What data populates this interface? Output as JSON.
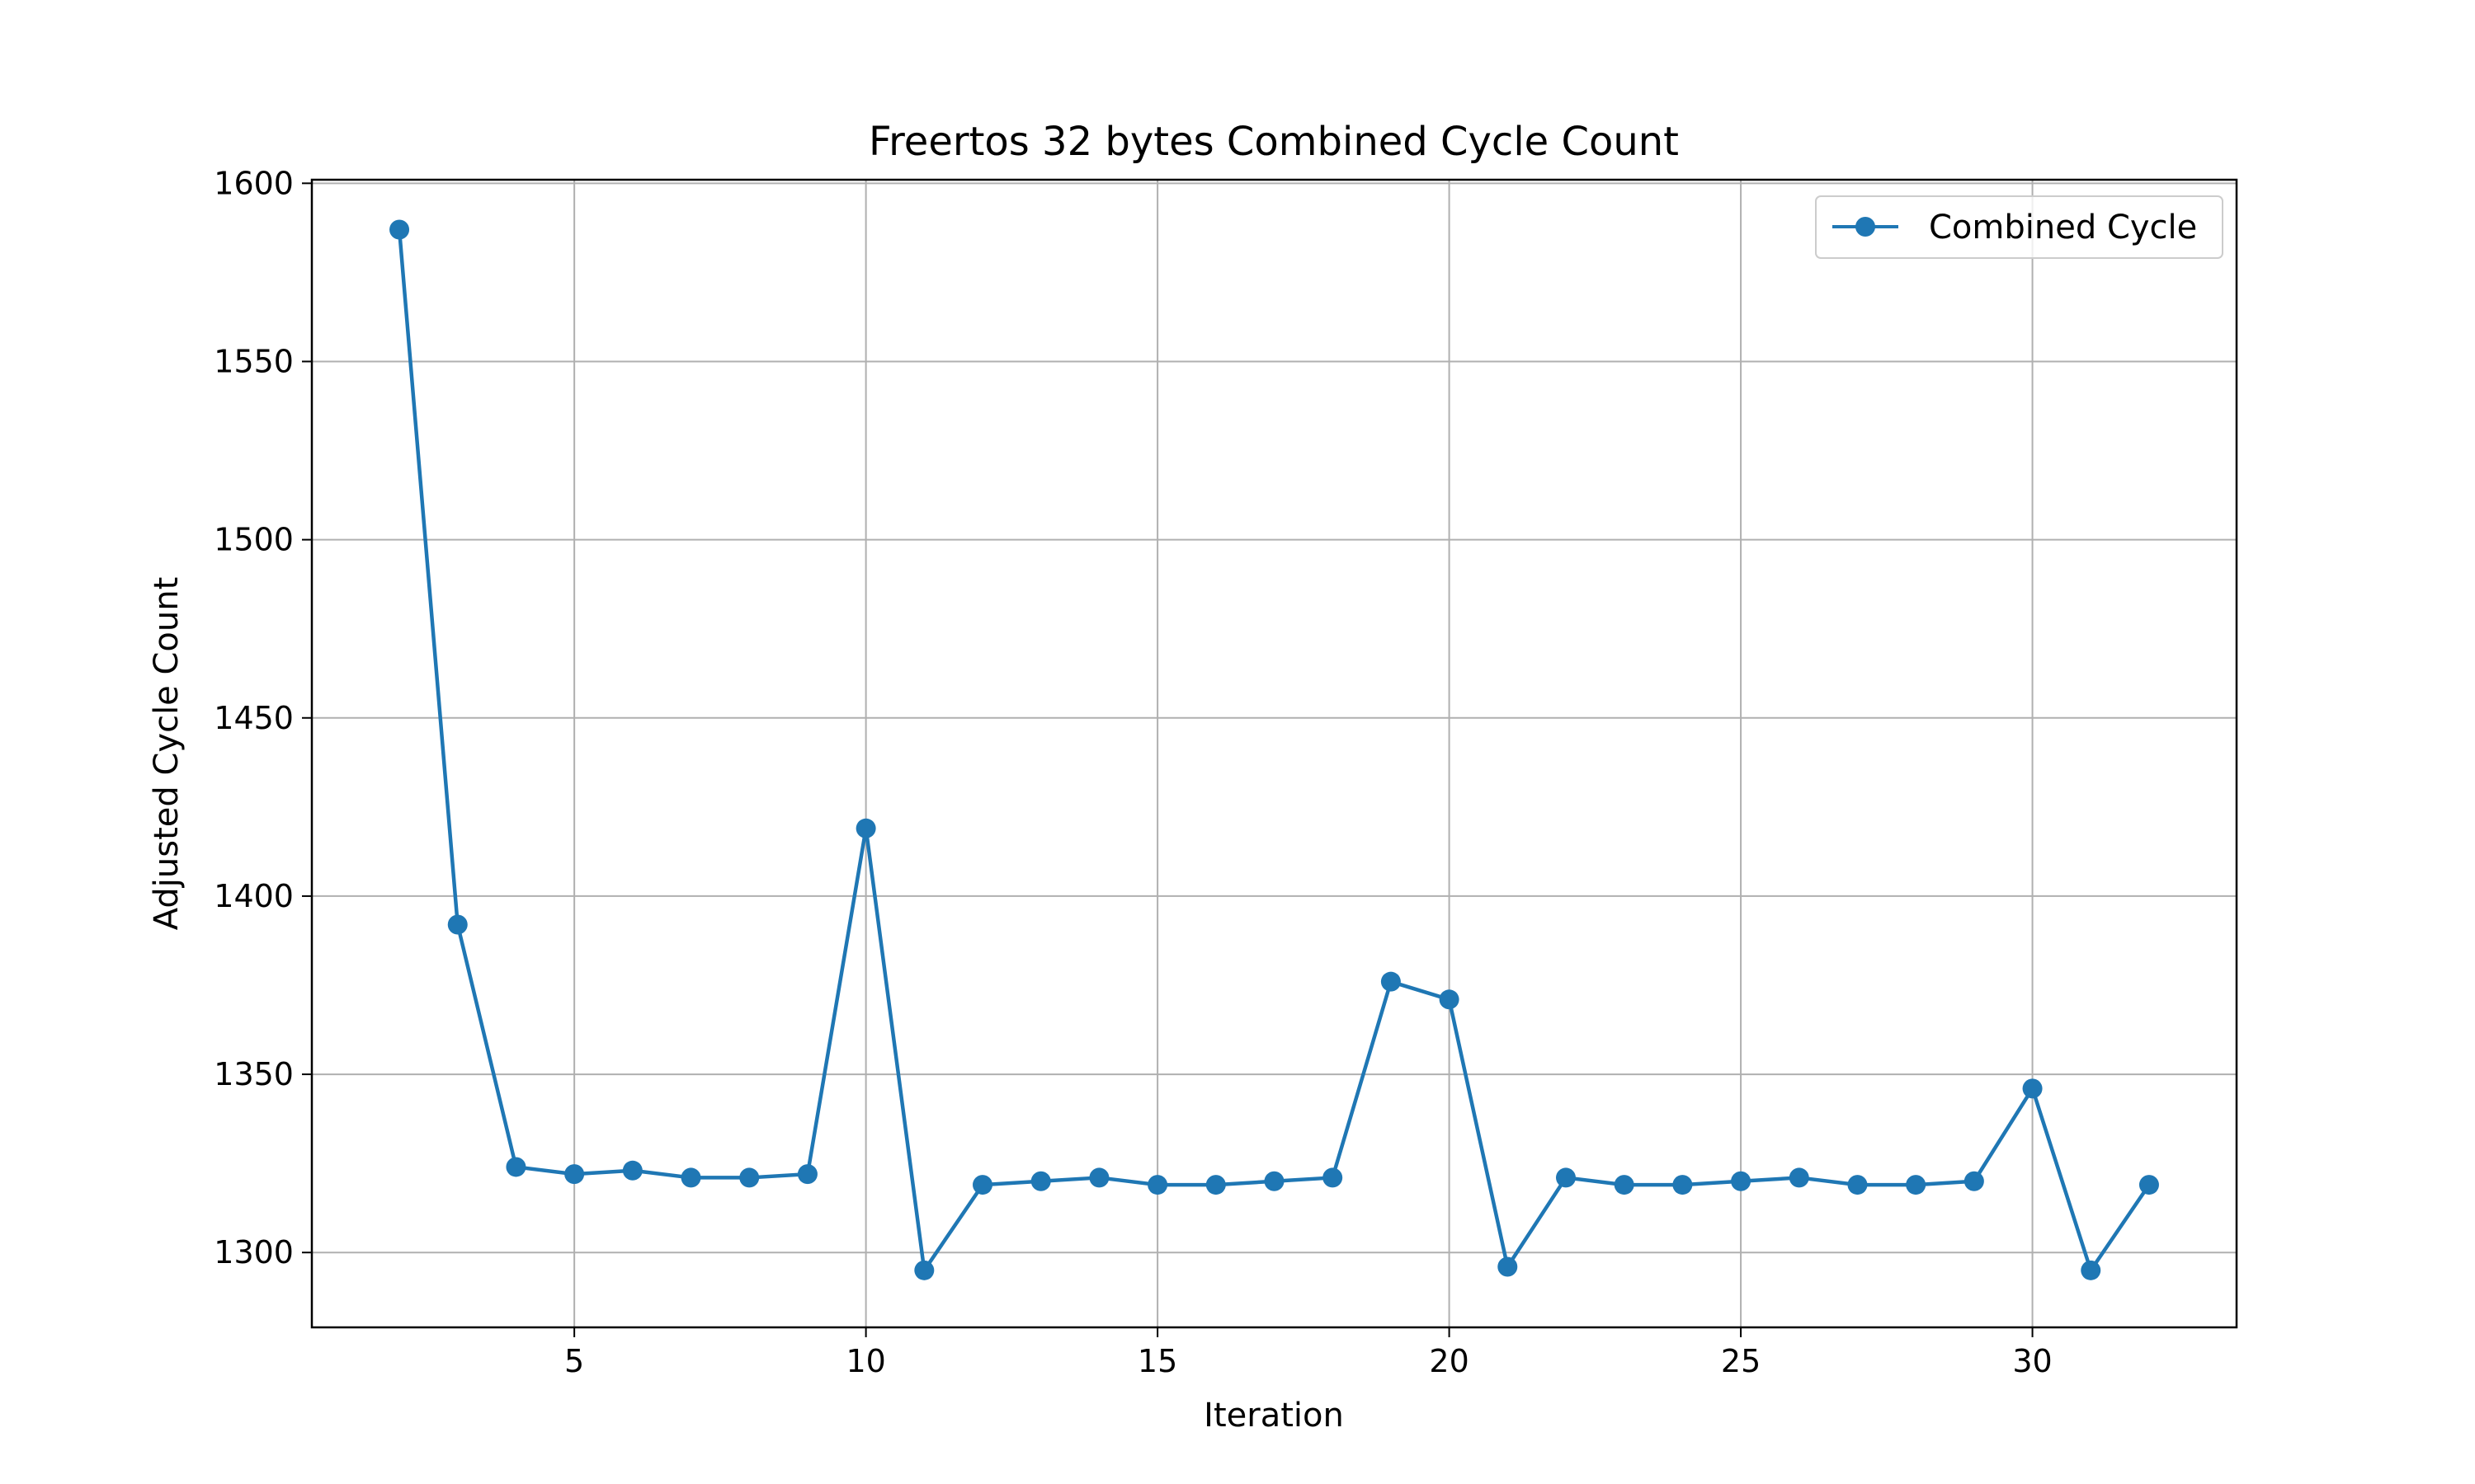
{
  "chart_data": {
    "type": "line",
    "title": "Freertos 32 bytes Combined Cycle Count",
    "xlabel": "Iteration",
    "ylabel": "Adjusted Cycle Count",
    "xlim": [
      0.5,
      33.5
    ],
    "ylim": [
      1279,
      1601
    ],
    "xticks": [
      5,
      10,
      15,
      20,
      25,
      30
    ],
    "yticks": [
      1300,
      1350,
      1400,
      1450,
      1500,
      1550,
      1600
    ],
    "grid": true,
    "legend_position": "upper right",
    "series": [
      {
        "name": "Combined Cycle",
        "color": "#1f77b4",
        "marker": "circle",
        "x": [
          2,
          3,
          4,
          5,
          6,
          7,
          8,
          9,
          10,
          11,
          12,
          13,
          14,
          15,
          16,
          17,
          18,
          19,
          20,
          21,
          22,
          23,
          24,
          25,
          26,
          27,
          28,
          29,
          30,
          31,
          32
        ],
        "y": [
          1587,
          1392,
          1324,
          1322,
          1323,
          1321,
          1321,
          1322,
          1419,
          1295,
          1319,
          1320,
          1321,
          1319,
          1319,
          1320,
          1321,
          1376,
          1371,
          1296,
          1321,
          1319,
          1319,
          1320,
          1321,
          1319,
          1319,
          1320,
          1346,
          1295,
          1319
        ]
      }
    ]
  }
}
